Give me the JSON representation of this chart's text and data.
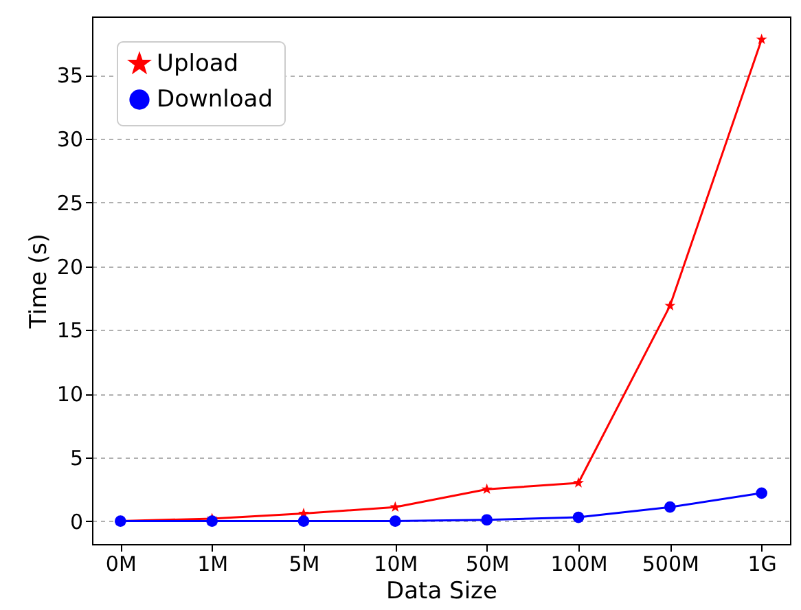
{
  "chart_data": {
    "type": "line",
    "xlabel": "Data Size",
    "ylabel": "Time (s)",
    "categories": [
      "0M",
      "1M",
      "5M",
      "10M",
      "50M",
      "100M",
      "500M",
      "1G"
    ],
    "series": [
      {
        "name": "Upload",
        "color": "#ff0000",
        "marker": "star",
        "values": [
          0,
          0.2,
          0.6,
          1.1,
          2.5,
          3.0,
          16.9,
          37.8
        ]
      },
      {
        "name": "Download",
        "color": "#0000ff",
        "marker": "circle",
        "values": [
          0,
          0,
          0,
          0,
          0.1,
          0.3,
          1.1,
          2.2
        ]
      }
    ],
    "ylim": [
      -1.8,
      39.6
    ],
    "yticks": [
      0,
      5,
      10,
      15,
      20,
      25,
      30,
      35
    ],
    "grid": "y",
    "legend": "top left",
    "line_style": "solid"
  }
}
